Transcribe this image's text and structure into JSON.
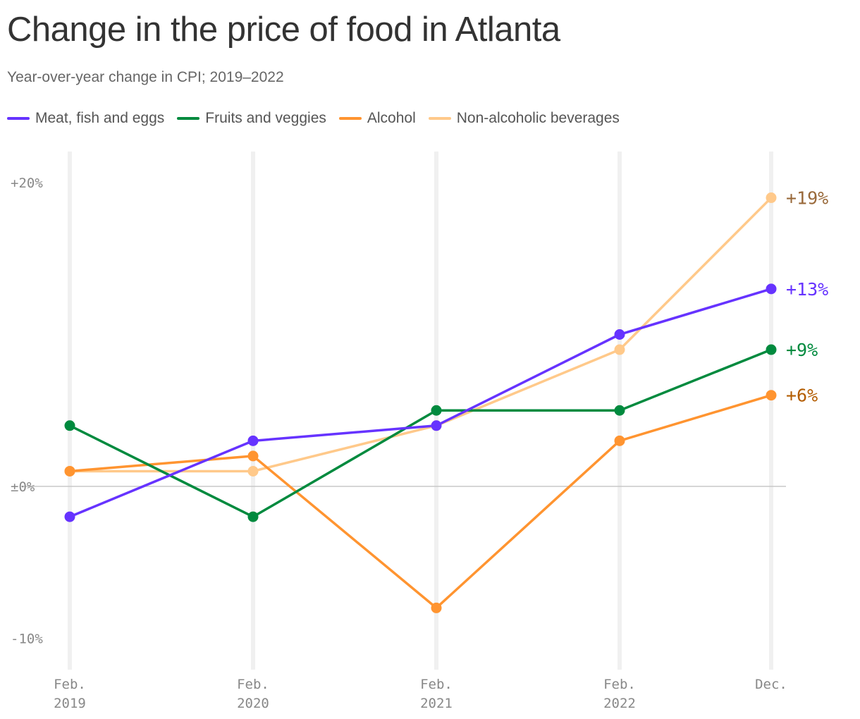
{
  "chart_data": {
    "type": "line",
    "title": "Change in the price of food in Atlanta",
    "subtitle": "Year-over-year change in CPI; 2019–2022",
    "x_categories": [
      [
        "Feb.",
        "2019"
      ],
      [
        "Feb.",
        "2020"
      ],
      [
        "Feb.",
        "2021"
      ],
      [
        "Feb.",
        "2022"
      ],
      [
        "Dec.",
        ""
      ]
    ],
    "y_ticks": [
      {
        "value": 20,
        "label": "+20%"
      },
      {
        "value": 0,
        "label": "±0%"
      },
      {
        "value": -10,
        "label": "-10%"
      }
    ],
    "ylim": [
      -12,
      22
    ],
    "legend_placement": "top",
    "series": [
      {
        "name": "Meat, fish and eggs",
        "color": "#6633ff",
        "label_color": "#6633ff",
        "values": [
          -2,
          3,
          4,
          10,
          13
        ],
        "end_label": "+13%"
      },
      {
        "name": "Fruits and veggies",
        "color": "#008a3e",
        "label_color": "#008a3e",
        "values": [
          4,
          -2,
          5,
          5,
          9
        ],
        "end_label": "+9%"
      },
      {
        "name": "Alcohol",
        "color": "#ff9430",
        "label_color": "#b35c00",
        "values": [
          1,
          2,
          -8,
          3,
          6
        ],
        "end_label": "+6%"
      },
      {
        "name": "Non-alcoholic beverages",
        "color": "#ffc98a",
        "label_color": "#99693a",
        "values": [
          1,
          1,
          4,
          9,
          19
        ],
        "end_label": "+19%"
      }
    ]
  }
}
